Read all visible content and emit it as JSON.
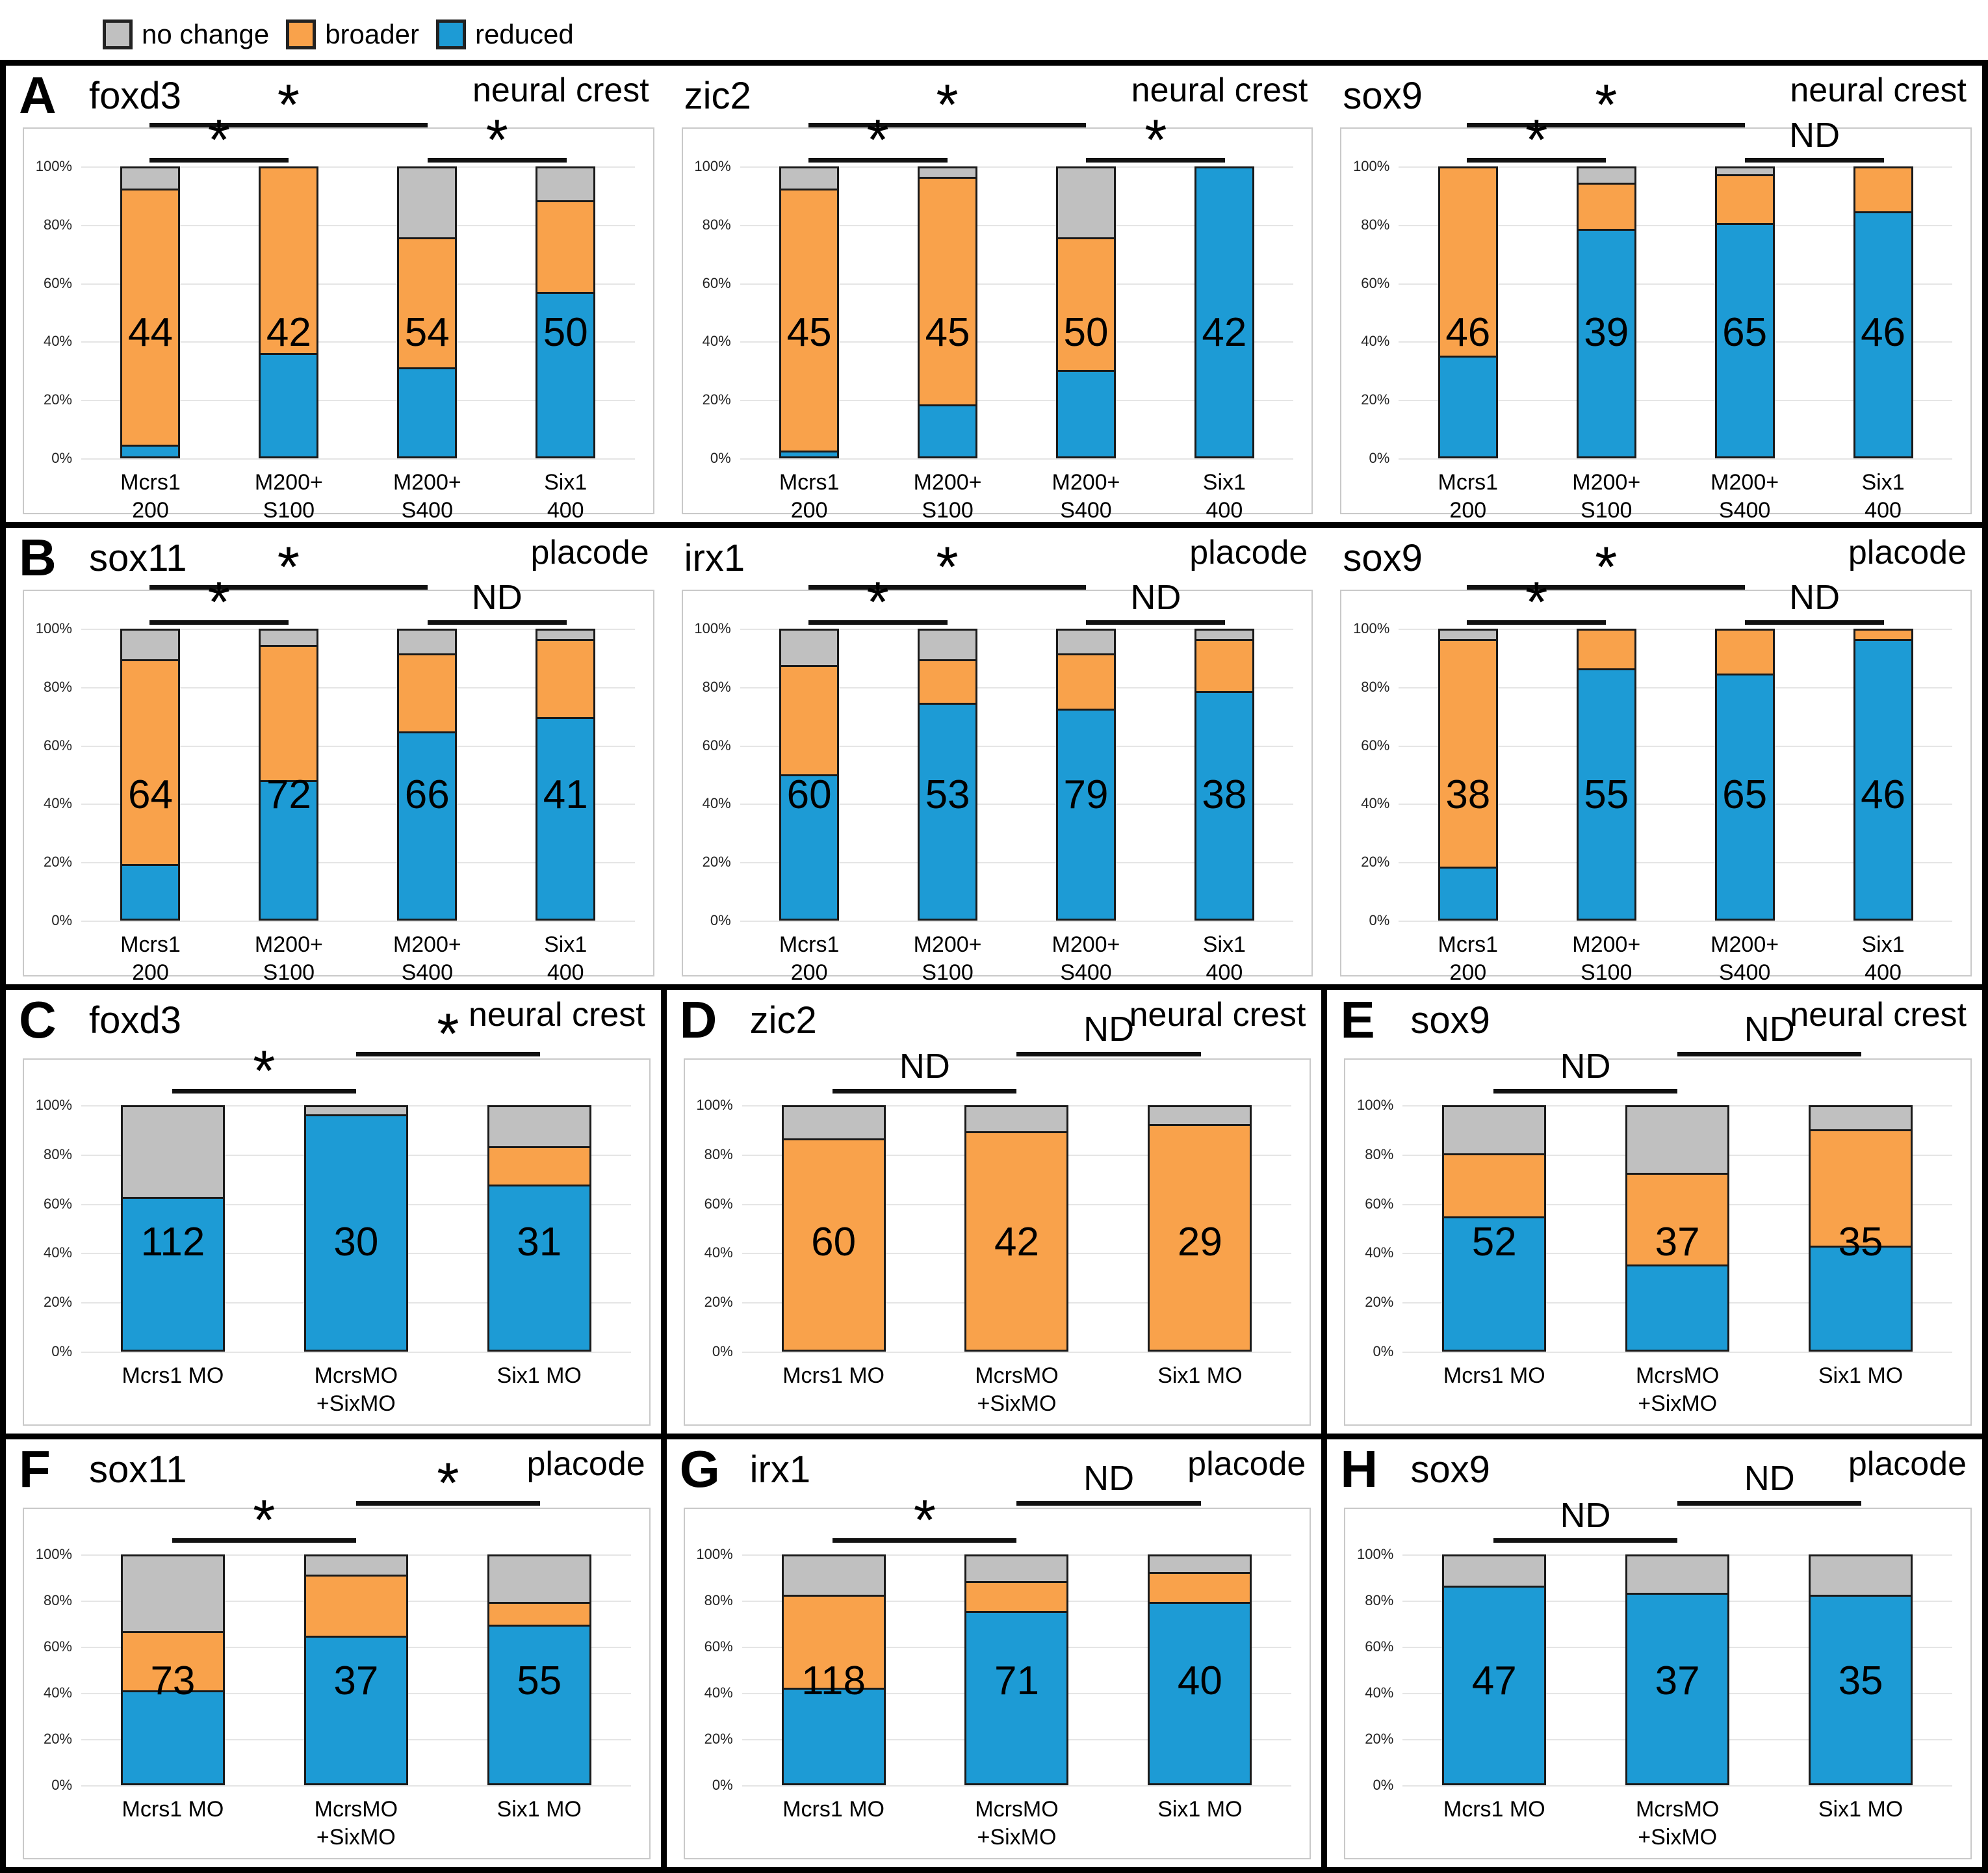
{
  "legend": {
    "items": [
      {
        "name": "no change",
        "label": "no change",
        "color": "#C0C0C0"
      },
      {
        "name": "broader",
        "label": "broader",
        "color": "#F9A24B"
      },
      {
        "name": "reduced",
        "label": "reduced",
        "color": "#1D9BD5"
      }
    ]
  },
  "colors": {
    "no_change": "#C0C0C0",
    "broader": "#F9A24B",
    "reduced": "#1D9BD5",
    "bar_border": "#1a1a1a",
    "sig_line": "#111111"
  },
  "y_axis": {
    "ticks": [
      "100%",
      "80%",
      "60%",
      "40%",
      "20%",
      "0%"
    ],
    "range": [
      0,
      100
    ],
    "grid": true
  },
  "chart_data": [
    {
      "id": "A-foxd3",
      "row": "A",
      "letter": "A",
      "gene": "foxd3",
      "region": "neural crest",
      "type": "bar",
      "stacked": true,
      "ylim": [
        0,
        100
      ],
      "categories": [
        [
          "Mcrs1",
          "200"
        ],
        [
          "M200+",
          "S100"
        ],
        [
          "M200+",
          "S400"
        ],
        [
          "Six1",
          "400"
        ]
      ],
      "series": [
        {
          "name": "reduced",
          "values": [
            4,
            36,
            31,
            57
          ]
        },
        {
          "name": "broader",
          "values": [
            89,
            64,
            45,
            32
          ]
        },
        {
          "name": "no change",
          "values": [
            7,
            0,
            24,
            11
          ]
        }
      ],
      "n_labels": [
        "44",
        "42",
        "54",
        "50"
      ],
      "significance": [
        {
          "from": 0,
          "to": 2,
          "label": "*",
          "level": "high"
        },
        {
          "from": 0,
          "to": 1,
          "label": "*",
          "level": "low"
        },
        {
          "from": 2,
          "to": 3,
          "label": "*",
          "level": "low"
        }
      ]
    },
    {
      "id": "A-zic2",
      "row": "A",
      "letter": "",
      "gene": "zic2",
      "region": "neural crest",
      "type": "bar",
      "stacked": true,
      "ylim": [
        0,
        100
      ],
      "categories": [
        [
          "Mcrs1",
          "200"
        ],
        [
          "M200+",
          "S100"
        ],
        [
          "M200+",
          "S400"
        ],
        [
          "Six1",
          "400"
        ]
      ],
      "series": [
        {
          "name": "reduced",
          "values": [
            2,
            18,
            30,
            100
          ]
        },
        {
          "name": "broader",
          "values": [
            91,
            79,
            46,
            0
          ]
        },
        {
          "name": "no change",
          "values": [
            7,
            3,
            24,
            0
          ]
        }
      ],
      "n_labels": [
        "45",
        "45",
        "50",
        "42"
      ],
      "significance": [
        {
          "from": 0,
          "to": 2,
          "label": "*",
          "level": "high"
        },
        {
          "from": 0,
          "to": 1,
          "label": "*",
          "level": "low"
        },
        {
          "from": 2,
          "to": 3,
          "label": "*",
          "level": "low"
        }
      ]
    },
    {
      "id": "A-sox9",
      "row": "A",
      "letter": "",
      "gene": "sox9",
      "region": "neural crest",
      "type": "bar",
      "stacked": true,
      "ylim": [
        0,
        100
      ],
      "categories": [
        [
          "Mcrs1",
          "200"
        ],
        [
          "M200+",
          "S100"
        ],
        [
          "M200+",
          "S400"
        ],
        [
          "Six1",
          "400"
        ]
      ],
      "series": [
        {
          "name": "reduced",
          "values": [
            35,
            79,
            81,
            85
          ]
        },
        {
          "name": "broader",
          "values": [
            65,
            16,
            17,
            15
          ]
        },
        {
          "name": "no change",
          "values": [
            0,
            5,
            2,
            0
          ]
        }
      ],
      "n_labels": [
        "46",
        "39",
        "65",
        "46"
      ],
      "significance": [
        {
          "from": 0,
          "to": 2,
          "label": "*",
          "level": "high"
        },
        {
          "from": 0,
          "to": 1,
          "label": "*",
          "level": "low"
        },
        {
          "from": 2,
          "to": 3,
          "label": "ND",
          "level": "low"
        }
      ]
    },
    {
      "id": "B-sox11",
      "row": "B",
      "letter": "B",
      "gene": "sox11",
      "region": "placode",
      "type": "bar",
      "stacked": true,
      "ylim": [
        0,
        100
      ],
      "categories": [
        [
          "Mcrs1",
          "200"
        ],
        [
          "M200+",
          "S100"
        ],
        [
          "M200+",
          "S400"
        ],
        [
          "Six1",
          "400"
        ]
      ],
      "series": [
        {
          "name": "reduced",
          "values": [
            19,
            48,
            65,
            70
          ]
        },
        {
          "name": "broader",
          "values": [
            71,
            47,
            27,
            27
          ]
        },
        {
          "name": "no change",
          "values": [
            10,
            5,
            8,
            3
          ]
        }
      ],
      "n_labels": [
        "64",
        "72",
        "66",
        "41"
      ],
      "significance": [
        {
          "from": 0,
          "to": 2,
          "label": "*",
          "level": "high"
        },
        {
          "from": 0,
          "to": 1,
          "label": "*",
          "level": "low"
        },
        {
          "from": 2,
          "to": 3,
          "label": "ND",
          "level": "low"
        }
      ]
    },
    {
      "id": "B-irx1",
      "row": "B",
      "letter": "",
      "gene": "irx1",
      "region": "placode",
      "type": "bar",
      "stacked": true,
      "ylim": [
        0,
        100
      ],
      "categories": [
        [
          "Mcrs1",
          "200"
        ],
        [
          "M200+",
          "S100"
        ],
        [
          "M200+",
          "S400"
        ],
        [
          "Six1",
          "400"
        ]
      ],
      "series": [
        {
          "name": "reduced",
          "values": [
            50,
            75,
            73,
            79
          ]
        },
        {
          "name": "broader",
          "values": [
            38,
            15,
            19,
            18
          ]
        },
        {
          "name": "no change",
          "values": [
            12,
            10,
            8,
            3
          ]
        }
      ],
      "n_labels": [
        "60",
        "53",
        "79",
        "38"
      ],
      "significance": [
        {
          "from": 0,
          "to": 2,
          "label": "*",
          "level": "high"
        },
        {
          "from": 0,
          "to": 1,
          "label": "*",
          "level": "low"
        },
        {
          "from": 2,
          "to": 3,
          "label": "ND",
          "level": "low"
        }
      ]
    },
    {
      "id": "B-sox9",
      "row": "B",
      "letter": "",
      "gene": "sox9",
      "region": "placode",
      "type": "bar",
      "stacked": true,
      "ylim": [
        0,
        100
      ],
      "categories": [
        [
          "Mcrs1",
          "200"
        ],
        [
          "M200+",
          "S100"
        ],
        [
          "M200+",
          "S400"
        ],
        [
          "Six1",
          "400"
        ]
      ],
      "series": [
        {
          "name": "reduced",
          "values": [
            18,
            87,
            85,
            97
          ]
        },
        {
          "name": "broader",
          "values": [
            79,
            13,
            15,
            3
          ]
        },
        {
          "name": "no change",
          "values": [
            3,
            0,
            0,
            0
          ]
        }
      ],
      "n_labels": [
        "38",
        "55",
        "65",
        "46"
      ],
      "significance": [
        {
          "from": 0,
          "to": 2,
          "label": "*",
          "level": "high"
        },
        {
          "from": 0,
          "to": 1,
          "label": "*",
          "level": "low"
        },
        {
          "from": 2,
          "to": 3,
          "label": "ND",
          "level": "low"
        }
      ]
    },
    {
      "id": "C-foxd3",
      "row": "C",
      "letter": "C",
      "gene": "foxd3",
      "region": "neural crest",
      "type": "bar",
      "stacked": true,
      "ylim": [
        0,
        100
      ],
      "categories": [
        [
          "Mcrs1 MO"
        ],
        [
          "McrsMO",
          "+SixMO"
        ],
        [
          "Six1 MO"
        ]
      ],
      "series": [
        {
          "name": "reduced",
          "values": [
            63,
            97,
            68
          ]
        },
        {
          "name": "broader",
          "values": [
            0,
            0,
            16
          ]
        },
        {
          "name": "no change",
          "values": [
            37,
            3,
            16
          ]
        }
      ],
      "n_labels": [
        "112",
        "30",
        "31"
      ],
      "significance": [
        {
          "from": 0,
          "to": 1,
          "label": "*",
          "level": "low"
        },
        {
          "from": 1,
          "to": 2,
          "label": "*",
          "level": "high"
        }
      ]
    },
    {
      "id": "D-zic2",
      "row": "D",
      "letter": "D",
      "gene": "zic2",
      "region": "neural crest",
      "type": "bar",
      "stacked": true,
      "ylim": [
        0,
        100
      ],
      "categories": [
        [
          "Mcrs1 MO"
        ],
        [
          "McrsMO",
          "+SixMO"
        ],
        [
          "Six1 MO"
        ]
      ],
      "series": [
        {
          "name": "reduced",
          "values": [
            0,
            0,
            0
          ]
        },
        {
          "name": "broader",
          "values": [
            87,
            90,
            93
          ]
        },
        {
          "name": "no change",
          "values": [
            13,
            10,
            7
          ]
        }
      ],
      "n_labels": [
        "60",
        "42",
        "29"
      ],
      "significance": [
        {
          "from": 0,
          "to": 1,
          "label": "ND",
          "level": "low"
        },
        {
          "from": 1,
          "to": 2,
          "label": "ND",
          "level": "high"
        }
      ]
    },
    {
      "id": "E-sox9",
      "row": "E",
      "letter": "E",
      "gene": "sox9",
      "region": "neural crest",
      "type": "bar",
      "stacked": true,
      "ylim": [
        0,
        100
      ],
      "categories": [
        [
          "Mcrs1 MO"
        ],
        [
          "McrsMO",
          "+SixMO"
        ],
        [
          "Six1 MO"
        ]
      ],
      "series": [
        {
          "name": "reduced",
          "values": [
            55,
            35,
            43
          ]
        },
        {
          "name": "broader",
          "values": [
            26,
            38,
            48
          ]
        },
        {
          "name": "no change",
          "values": [
            19,
            27,
            9
          ]
        }
      ],
      "n_labels": [
        "52",
        "37",
        "35"
      ],
      "significance": [
        {
          "from": 0,
          "to": 1,
          "label": "ND",
          "level": "low"
        },
        {
          "from": 1,
          "to": 2,
          "label": "ND",
          "level": "high"
        }
      ]
    },
    {
      "id": "F-sox11",
      "row": "F",
      "letter": "F",
      "gene": "sox11",
      "region": "placode",
      "type": "bar",
      "stacked": true,
      "ylim": [
        0,
        100
      ],
      "categories": [
        [
          "Mcrs1 MO"
        ],
        [
          "McrsMO",
          "+SixMO"
        ],
        [
          "Six1 MO"
        ]
      ],
      "series": [
        {
          "name": "reduced",
          "values": [
            41,
            65,
            70
          ]
        },
        {
          "name": "broader",
          "values": [
            26,
            27,
            10
          ]
        },
        {
          "name": "no change",
          "values": [
            33,
            8,
            20
          ]
        }
      ],
      "n_labels": [
        "73",
        "37",
        "55"
      ],
      "significance": [
        {
          "from": 0,
          "to": 1,
          "label": "*",
          "level": "low"
        },
        {
          "from": 1,
          "to": 2,
          "label": "*",
          "level": "high"
        }
      ]
    },
    {
      "id": "G-irx1",
      "row": "G",
      "letter": "G",
      "gene": "irx1",
      "region": "placode",
      "type": "bar",
      "stacked": true,
      "ylim": [
        0,
        100
      ],
      "categories": [
        [
          "Mcrs1 MO"
        ],
        [
          "McrsMO",
          "+SixMO"
        ],
        [
          "Six1 MO"
        ]
      ],
      "series": [
        {
          "name": "reduced",
          "values": [
            42,
            76,
            80
          ]
        },
        {
          "name": "broader",
          "values": [
            41,
            13,
            13
          ]
        },
        {
          "name": "no change",
          "values": [
            17,
            11,
            7
          ]
        }
      ],
      "n_labels": [
        "118",
        "71",
        "40"
      ],
      "significance": [
        {
          "from": 0,
          "to": 1,
          "label": "*",
          "level": "low"
        },
        {
          "from": 1,
          "to": 2,
          "label": "ND",
          "level": "high"
        }
      ]
    },
    {
      "id": "H-sox9",
      "row": "H",
      "letter": "H",
      "gene": "sox9",
      "region": "placode",
      "type": "bar",
      "stacked": true,
      "ylim": [
        0,
        100
      ],
      "categories": [
        [
          "Mcrs1 MO"
        ],
        [
          "McrsMO",
          "+SixMO"
        ],
        [
          "Six1 MO"
        ]
      ],
      "series": [
        {
          "name": "reduced",
          "values": [
            87,
            84,
            83
          ]
        },
        {
          "name": "broader",
          "values": [
            0,
            0,
            0
          ]
        },
        {
          "name": "no change",
          "values": [
            13,
            16,
            17
          ]
        }
      ],
      "n_labels": [
        "47",
        "37",
        "35"
      ],
      "significance": [
        {
          "from": 0,
          "to": 1,
          "label": "ND",
          "level": "low"
        },
        {
          "from": 1,
          "to": 2,
          "label": "ND",
          "level": "high"
        }
      ]
    }
  ]
}
